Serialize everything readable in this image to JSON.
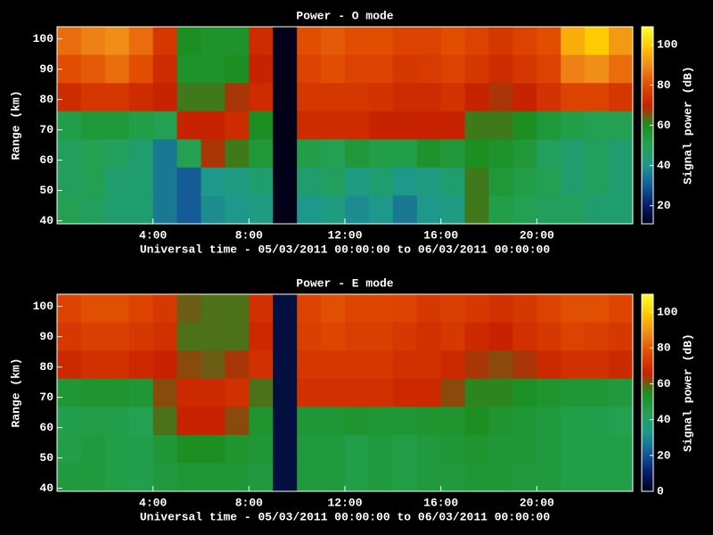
{
  "chart_data": [
    {
      "type": "heatmap",
      "title": "Power - O mode",
      "xlabel": "Universal time - 05/03/2011 00:00:00 to 06/03/2011 00:00:00",
      "ylabel": "Range (km)",
      "colorbar_label": "Signal power (dB)",
      "xlim": [
        0,
        24
      ],
      "xticks": [
        {
          "value": 4,
          "label": "4:00"
        },
        {
          "value": 8,
          "label": "8:00"
        },
        {
          "value": 12,
          "label": "12:00"
        },
        {
          "value": 16,
          "label": "16:00"
        },
        {
          "value": 20,
          "label": "20:00"
        }
      ],
      "ylim": [
        39,
        104
      ],
      "yticks": [
        40,
        50,
        60,
        70,
        80,
        90,
        100
      ],
      "clim": [
        11,
        109
      ],
      "cticks": [
        20,
        40,
        60,
        80,
        100
      ],
      "colormap": [
        "#000018",
        "#06206e",
        "#155f9a",
        "#1e9a8a",
        "#23a050",
        "#1d8f22",
        "#c82200",
        "#e04a00",
        "#f08a18",
        "#ffc800",
        "#ffff30"
      ],
      "z": [
        [
          85,
          88,
          90,
          85,
          75,
          60,
          58,
          58,
          72,
          5,
          80,
          82,
          80,
          80,
          78,
          78,
          80,
          78,
          75,
          78,
          80,
          95,
          100,
          92
        ],
        [
          80,
          82,
          85,
          80,
          72,
          58,
          58,
          60,
          70,
          5,
          78,
          80,
          78,
          78,
          75,
          76,
          78,
          75,
          72,
          75,
          78,
          88,
          90,
          85
        ],
        [
          72,
          75,
          75,
          72,
          70,
          62,
          62,
          68,
          72,
          5,
          75,
          75,
          75,
          74,
          72,
          72,
          74,
          70,
          68,
          70,
          74,
          78,
          78,
          75
        ],
        [
          52,
          55,
          55,
          52,
          50,
          70,
          70,
          72,
          60,
          5,
          72,
          72,
          72,
          70,
          70,
          70,
          70,
          62,
          62,
          60,
          55,
          52,
          50,
          50
        ],
        [
          48,
          50,
          48,
          45,
          35,
          50,
          68,
          62,
          55,
          5,
          52,
          50,
          55,
          52,
          52,
          58,
          55,
          60,
          58,
          55,
          48,
          45,
          48,
          45
        ],
        [
          48,
          50,
          45,
          45,
          35,
          30,
          40,
          42,
          45,
          5,
          45,
          48,
          42,
          45,
          40,
          42,
          45,
          62,
          55,
          52,
          50,
          45,
          48,
          45
        ],
        [
          50,
          48,
          45,
          45,
          35,
          30,
          38,
          40,
          42,
          5,
          40,
          42,
          38,
          40,
          35,
          40,
          42,
          62,
          52,
          50,
          48,
          48,
          45,
          45
        ]
      ]
    },
    {
      "type": "heatmap",
      "title": "Power - E mode",
      "xlabel": "Universal time - 05/03/2011 00:00:00 to 06/03/2011 00:00:00",
      "ylabel": "Range (km)",
      "colorbar_label": "Signal power (dB)",
      "xlim": [
        0,
        24
      ],
      "xticks": [
        {
          "value": 4,
          "label": "4:00"
        },
        {
          "value": 8,
          "label": "8:00"
        },
        {
          "value": 12,
          "label": "12:00"
        },
        {
          "value": 16,
          "label": "16:00"
        },
        {
          "value": 20,
          "label": "20:00"
        }
      ],
      "ylim": [
        39,
        104
      ],
      "yticks": [
        40,
        50,
        60,
        70,
        80,
        90,
        100
      ],
      "clim": [
        0,
        110
      ],
      "cticks": [
        0,
        20,
        40,
        60,
        80,
        100
      ],
      "colormap": [
        "#000018",
        "#06206e",
        "#155f9a",
        "#1e9a8a",
        "#23a050",
        "#1d8f22",
        "#c82200",
        "#e04a00",
        "#f08a18",
        "#ffc800",
        "#ffff30"
      ],
      "z": [
        [
          75,
          78,
          78,
          75,
          72,
          60,
          58,
          58,
          70,
          5,
          75,
          78,
          76,
          76,
          75,
          72,
          74,
          72,
          70,
          72,
          75,
          78,
          78,
          76
        ],
        [
          72,
          74,
          74,
          72,
          70,
          58,
          58,
          58,
          68,
          5,
          74,
          76,
          74,
          74,
          72,
          70,
          72,
          68,
          66,
          70,
          72,
          75,
          74,
          72
        ],
        [
          68,
          70,
          70,
          68,
          66,
          62,
          60,
          64,
          70,
          5,
          72,
          72,
          72,
          72,
          70,
          70,
          68,
          64,
          62,
          64,
          68,
          70,
          70,
          68
        ],
        [
          50,
          52,
          52,
          50,
          62,
          68,
          68,
          70,
          58,
          5,
          70,
          70,
          70,
          70,
          68,
          68,
          62,
          56,
          56,
          54,
          52,
          50,
          50,
          48
        ],
        [
          45,
          46,
          45,
          44,
          58,
          66,
          66,
          62,
          52,
          5,
          50,
          50,
          52,
          50,
          50,
          52,
          52,
          55,
          52,
          50,
          48,
          46,
          45,
          44
        ],
        [
          46,
          48,
          46,
          45,
          50,
          55,
          55,
          52,
          50,
          5,
          48,
          48,
          46,
          48,
          46,
          48,
          50,
          52,
          50,
          50,
          48,
          46,
          46,
          46
        ],
        [
          48,
          48,
          46,
          45,
          48,
          50,
          50,
          50,
          48,
          5,
          48,
          48,
          46,
          48,
          46,
          48,
          48,
          50,
          50,
          48,
          48,
          46,
          46,
          46
        ]
      ]
    }
  ]
}
